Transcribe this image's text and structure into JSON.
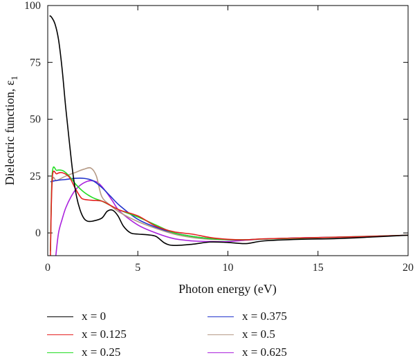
{
  "chart_data": {
    "type": "line",
    "xlabel": "Photon energy (eV)",
    "ylabel": "Dielectric function, ε",
    "ylabel_subscript": "1",
    "xlim": [
      0,
      20
    ],
    "ylim": [
      -10,
      100
    ],
    "xticks": [
      0,
      5,
      10,
      15,
      20
    ],
    "yticks": [
      0,
      25,
      50,
      75,
      100
    ],
    "legend_position": "bottom, two columns",
    "series": [
      {
        "name": "x = 0",
        "color": "#000000",
        "x": [
          0.1,
          0.2,
          0.4,
          0.6,
          0.8,
          1.0,
          1.2,
          1.4,
          1.6,
          1.8,
          2.0,
          2.2,
          2.5,
          3.0,
          3.3,
          3.6,
          3.9,
          4.2,
          4.6,
          5.0,
          5.5,
          6.0,
          6.5,
          7.0,
          8.0,
          9.0,
          10.0,
          11.0,
          12.0,
          14.0,
          16.0,
          18.0,
          20.0
        ],
        "y": [
          95.5,
          95,
          92,
          85,
          72,
          55,
          40,
          26,
          16,
          10,
          6.5,
          5.2,
          5.2,
          6.5,
          9.5,
          10,
          7.5,
          3,
          0,
          -0.5,
          -0.8,
          -1.5,
          -4.5,
          -5.5,
          -5,
          -4,
          -4.2,
          -4.7,
          -3.5,
          -2.8,
          -2.5,
          -1.8,
          -1
        ]
      },
      {
        "name": "x = 0.125",
        "color": "#e52020",
        "x": [
          0.15,
          0.25,
          0.5,
          0.8,
          1.2,
          1.5,
          1.8,
          2.0,
          2.5,
          3.0,
          3.5,
          4.0,
          5.0,
          6.0,
          7.0,
          8.0,
          9.0,
          10.0,
          11.0,
          12.0,
          14.0,
          16.0,
          18.0,
          20.0
        ],
        "y": [
          -10,
          24,
          26,
          26.5,
          24.5,
          20,
          16,
          14.8,
          14.3,
          14,
          12,
          10,
          7.5,
          3,
          0.5,
          -0.5,
          -2,
          -2.8,
          -3,
          -2.6,
          -2.2,
          -1.9,
          -1.5,
          -1
        ]
      },
      {
        "name": "x = 0.25",
        "color": "#22dd22",
        "x": [
          0.15,
          0.25,
          0.5,
          0.8,
          1.0,
          1.3,
          1.6,
          2.0,
          2.5,
          3.0,
          3.5,
          4.0,
          5.0,
          6.0,
          7.0,
          8.0,
          9.0,
          10.0,
          11.0,
          12.0,
          14.0,
          16.0,
          18.0,
          20.0
        ],
        "y": [
          -8,
          26,
          27.5,
          27.5,
          26.5,
          24,
          21,
          18,
          15.5,
          14,
          12,
          10,
          7,
          3.5,
          0,
          -1.5,
          -2.5,
          -3,
          -3,
          -2.7,
          -2.3,
          -1.9,
          -1.5,
          -1
        ]
      },
      {
        "name": "x = 0.375",
        "color": "#2233cc",
        "x": [
          0.15,
          0.3,
          0.6,
          1.0,
          1.5,
          2.0,
          2.5,
          3.0,
          3.5,
          4.0,
          5.0,
          6.0,
          7.0,
          8.0,
          9.0,
          10.0,
          11.0,
          12.0,
          14.0,
          16.0,
          18.0,
          20.0
        ],
        "y": [
          22.5,
          22.8,
          23.2,
          23.5,
          24,
          24,
          23,
          20,
          16,
          12,
          6,
          2.5,
          0,
          -1.5,
          -2.5,
          -3,
          -3,
          -2.7,
          -2.2,
          -1.9,
          -1.5,
          -1
        ]
      },
      {
        "name": "x = 0.5",
        "color": "#b59a86",
        "x": [
          0.15,
          0.25,
          0.5,
          1.0,
          1.5,
          2.0,
          2.4,
          2.7,
          3.0,
          3.5,
          4.0,
          5.0,
          6.0,
          7.0,
          8.0,
          9.0,
          10.0,
          11.0,
          12.0,
          14.0,
          16.0,
          18.0,
          20.0
        ],
        "y": [
          -8,
          22,
          23,
          25,
          26.5,
          28,
          28.5,
          25,
          16,
          12,
          9,
          5,
          2,
          -0.5,
          -2,
          -2.8,
          -3,
          -3,
          -2.6,
          -2.2,
          -1.8,
          -1.4,
          -1
        ]
      },
      {
        "name": "x = 0.625",
        "color": "#aa22dd",
        "x": [
          0.45,
          0.6,
          0.8,
          1.0,
          1.3,
          1.6,
          2.0,
          2.4,
          2.8,
          3.2,
          3.6,
          4.0,
          5.0,
          6.0,
          7.0,
          8.0,
          9.0,
          10.0,
          11.0,
          12.0,
          14.0,
          16.0,
          18.0,
          20.0
        ],
        "y": [
          -10,
          0,
          6,
          11,
          16,
          19.5,
          22,
          23,
          22,
          18.5,
          14,
          9.5,
          3.5,
          0,
          -2.5,
          -3.5,
          -3.8,
          -3.8,
          -3.2,
          -2.7,
          -2.2,
          -1.9,
          -1.5,
          -1
        ]
      }
    ]
  }
}
